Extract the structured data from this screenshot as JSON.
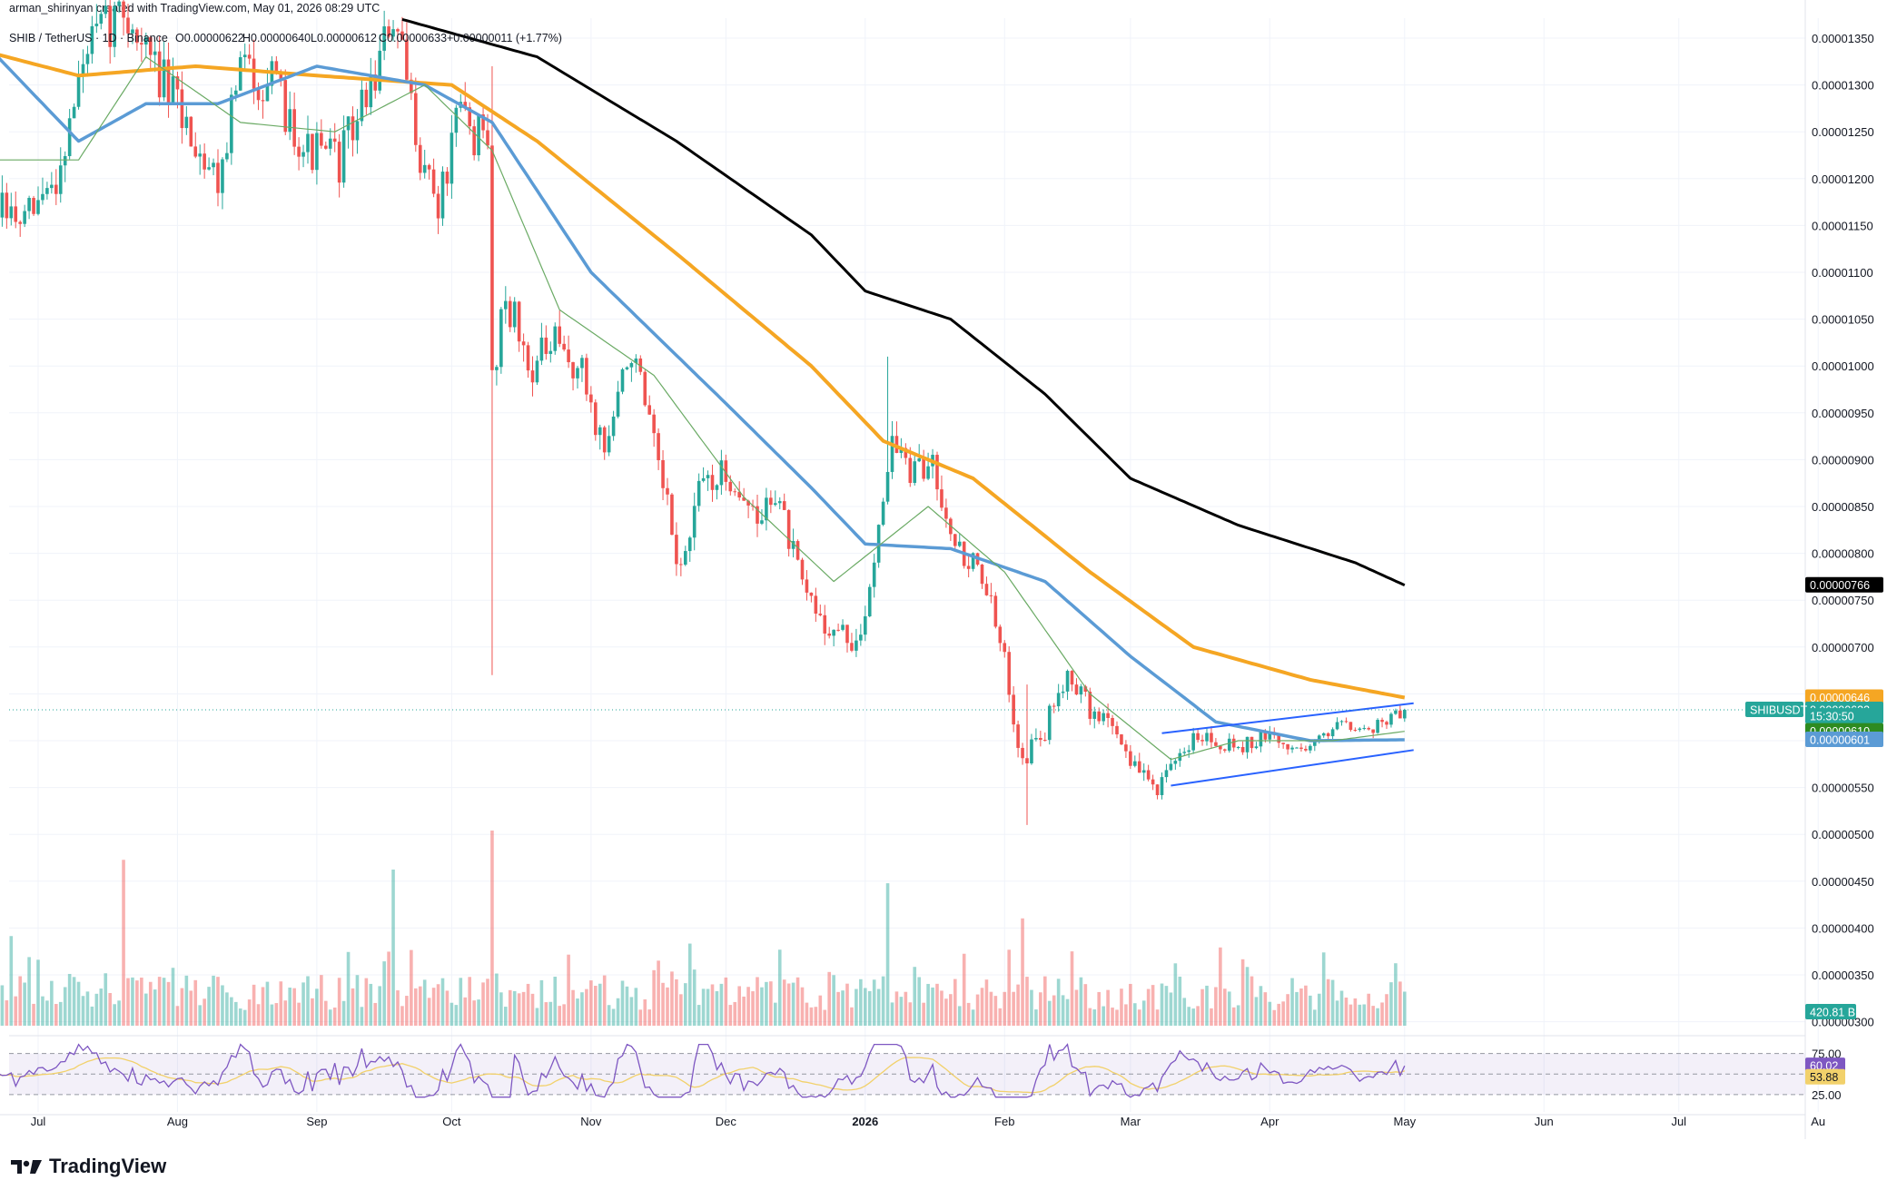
{
  "header": {
    "credit": "arman_shirinyan created with TradingView.com, May 01, 2026 08:29 UTC",
    "symbol": "SHIB / TetherUS · 1D · Binance",
    "open": "O0.00000622",
    "high": "H0.00000640",
    "low": "L0.00000612",
    "close": "C0.00000633",
    "change": "+0.00000011 (+1.77%)"
  },
  "brand": {
    "logo_text": "TradingView"
  },
  "colors": {
    "up": "#26a69a",
    "down": "#ef5350",
    "ma200": "#000000",
    "ma100": "#f5a623",
    "ma50": "#5b9bd5",
    "ma20": "#6aaa64",
    "rsi": "#7e57c2",
    "rsi_ma": "#f2d16b",
    "channel": "#2962ff"
  },
  "chart_data": {
    "type": "candlestick",
    "symbol": "SHIBUSDT",
    "timeframe": "1D",
    "x_tick_labels": [
      "Jul",
      "Aug",
      "Sep",
      "Oct",
      "Nov",
      "Dec",
      "2026",
      "Feb",
      "Mar",
      "Apr",
      "May",
      "Jun",
      "Jul",
      "Au"
    ],
    "y_tick_labels": [
      "0.00001350",
      "0.00001300",
      "0.00001250",
      "0.00001200",
      "0.00001150",
      "0.00001100",
      "0.00001050",
      "0.00001000",
      "0.00000950",
      "0.00000900",
      "0.00000850",
      "0.00000800",
      "0.00000750",
      "0.00000700",
      "0.00000650",
      "0.00000600",
      "0.00000550",
      "0.00000500",
      "0.00000450",
      "0.00000400",
      "0.00000350",
      "0.00000300"
    ],
    "ylim": [
      3e-06,
      1.37e-05
    ],
    "price_path": [
      {
        "date": "2025-06-20",
        "price": 1.17e-05
      },
      {
        "date": "2025-06-28",
        "price": 1.15e-05
      },
      {
        "date": "2025-07-05",
        "price": 1.2e-05
      },
      {
        "date": "2025-07-12",
        "price": 1.34e-05
      },
      {
        "date": "2025-07-20",
        "price": 1.38e-05
      },
      {
        "date": "2025-07-28",
        "price": 1.31e-05
      },
      {
        "date": "2025-08-04",
        "price": 1.25e-05
      },
      {
        "date": "2025-08-10",
        "price": 1.2e-05
      },
      {
        "date": "2025-08-15",
        "price": 1.32e-05
      },
      {
        "date": "2025-08-22",
        "price": 1.3e-05
      },
      {
        "date": "2025-08-30",
        "price": 1.23e-05
      },
      {
        "date": "2025-09-06",
        "price": 1.22e-05
      },
      {
        "date": "2025-09-13",
        "price": 1.3e-05
      },
      {
        "date": "2025-09-18",
        "price": 1.37e-05
      },
      {
        "date": "2025-09-24",
        "price": 1.23e-05
      },
      {
        "date": "2025-09-28",
        "price": 1.17e-05
      },
      {
        "date": "2025-10-03",
        "price": 1.27e-05
      },
      {
        "date": "2025-10-09",
        "price": 1.23e-05
      },
      {
        "date": "2025-10-10",
        "price": 9.9e-06
      },
      {
        "date": "2025-10-13",
        "price": 1.08e-05
      },
      {
        "date": "2025-10-18",
        "price": 1e-05
      },
      {
        "date": "2025-10-24",
        "price": 1.02e-05
      },
      {
        "date": "2025-10-30",
        "price": 9.9e-06
      },
      {
        "date": "2025-11-04",
        "price": 9.1e-06
      },
      {
        "date": "2025-11-10",
        "price": 1.02e-05
      },
      {
        "date": "2025-11-14",
        "price": 9.3e-06
      },
      {
        "date": "2025-11-21",
        "price": 7.8e-06
      },
      {
        "date": "2025-11-26",
        "price": 8.8e-06
      },
      {
        "date": "2025-12-03",
        "price": 8.8e-06
      },
      {
        "date": "2025-12-08",
        "price": 8.3e-06
      },
      {
        "date": "2025-12-12",
        "price": 8.7e-06
      },
      {
        "date": "2025-12-18",
        "price": 7.6e-06
      },
      {
        "date": "2025-12-24",
        "price": 7.2e-06
      },
      {
        "date": "2025-12-31",
        "price": 7e-06
      },
      {
        "date": "2026-01-05",
        "price": 8.7e-06
      },
      {
        "date": "2026-01-07",
        "price": 9.2e-06
      },
      {
        "date": "2026-01-12",
        "price": 8.8e-06
      },
      {
        "date": "2026-01-16",
        "price": 9e-06
      },
      {
        "date": "2026-01-22",
        "price": 8e-06
      },
      {
        "date": "2026-01-27",
        "price": 7.8e-06
      },
      {
        "date": "2026-02-01",
        "price": 6.8e-06
      },
      {
        "date": "2026-02-05",
        "price": 5.8e-06
      },
      {
        "date": "2026-02-10",
        "price": 6.1e-06
      },
      {
        "date": "2026-02-15",
        "price": 6.8e-06
      },
      {
        "date": "2026-02-20",
        "price": 6.3e-06
      },
      {
        "date": "2026-02-25",
        "price": 6.2e-06
      },
      {
        "date": "2026-03-02",
        "price": 5.7e-06
      },
      {
        "date": "2026-03-07",
        "price": 5.5e-06
      },
      {
        "date": "2026-03-12",
        "price": 5.8e-06
      },
      {
        "date": "2026-03-16",
        "price": 6.1e-06
      },
      {
        "date": "2026-03-20",
        "price": 6e-06
      },
      {
        "date": "2026-03-26",
        "price": 5.95e-06
      },
      {
        "date": "2026-04-01",
        "price": 6.05e-06
      },
      {
        "date": "2026-04-06",
        "price": 5.9e-06
      },
      {
        "date": "2026-04-12",
        "price": 6e-06
      },
      {
        "date": "2026-04-17",
        "price": 6.25e-06
      },
      {
        "date": "2026-04-22",
        "price": 6.1e-06
      },
      {
        "date": "2026-04-26",
        "price": 6.2e-06
      },
      {
        "date": "2026-05-01",
        "price": 6.33e-06
      }
    ],
    "volatility": [
      {
        "from": "2025-06-20",
        "value": 0.02
      },
      {
        "from": "2025-10-01",
        "value": 0.022
      },
      {
        "from": "2026-03-05",
        "value": 0.015
      },
      {
        "from": "2026-04-05",
        "value": 0.012
      }
    ],
    "spikes": [
      {
        "date": "2025-10-10",
        "low": 6.7e-06,
        "high": 1.32e-05
      },
      {
        "date": "2026-01-06",
        "low": 9e-06,
        "high": 1.01e-05
      },
      {
        "date": "2026-02-06",
        "low": 5.1e-06,
        "high": 6.6e-06
      }
    ],
    "moving_averages": [
      {
        "name": "MA200",
        "points": [
          {
            "date": "2025-09-20",
            "price": 1.37e-05
          },
          {
            "date": "2025-10-20",
            "price": 1.33e-05
          },
          {
            "date": "2025-11-20",
            "price": 1.24e-05
          },
          {
            "date": "2025-12-20",
            "price": 1.14e-05
          },
          {
            "date": "2026-01-01",
            "price": 1.08e-05
          },
          {
            "date": "2026-01-20",
            "price": 1.05e-05
          },
          {
            "date": "2026-02-10",
            "price": 9.7e-06
          },
          {
            "date": "2026-03-01",
            "price": 8.8e-06
          },
          {
            "date": "2026-03-25",
            "price": 8.3e-06
          },
          {
            "date": "2026-04-20",
            "price": 7.9e-06
          },
          {
            "date": "2026-05-01",
            "price": 7.66e-06
          }
        ]
      },
      {
        "name": "MA100",
        "points": [
          {
            "date": "2025-06-20",
            "price": 1.335e-05
          },
          {
            "date": "2025-07-10",
            "price": 1.31e-05
          },
          {
            "date": "2025-08-05",
            "price": 1.32e-05
          },
          {
            "date": "2025-09-01",
            "price": 1.31e-05
          },
          {
            "date": "2025-10-01",
            "price": 1.3e-05
          },
          {
            "date": "2025-10-20",
            "price": 1.24e-05
          },
          {
            "date": "2025-11-20",
            "price": 1.12e-05
          },
          {
            "date": "2025-12-20",
            "price": 1e-05
          },
          {
            "date": "2026-01-05",
            "price": 9.2e-06
          },
          {
            "date": "2026-01-25",
            "price": 8.8e-06
          },
          {
            "date": "2026-02-20",
            "price": 7.8e-06
          },
          {
            "date": "2026-03-15",
            "price": 7e-06
          },
          {
            "date": "2026-04-10",
            "price": 6.65e-06
          },
          {
            "date": "2026-05-01",
            "price": 6.46e-06
          }
        ]
      },
      {
        "name": "MA50",
        "points": [
          {
            "date": "2025-06-20",
            "price": 1.34e-05
          },
          {
            "date": "2025-07-10",
            "price": 1.24e-05
          },
          {
            "date": "2025-07-25",
            "price": 1.28e-05
          },
          {
            "date": "2025-08-10",
            "price": 1.28e-05
          },
          {
            "date": "2025-09-01",
            "price": 1.32e-05
          },
          {
            "date": "2025-09-25",
            "price": 1.3e-05
          },
          {
            "date": "2025-10-10",
            "price": 1.26e-05
          },
          {
            "date": "2025-11-01",
            "price": 1.1e-05
          },
          {
            "date": "2025-12-01",
            "price": 9.6e-06
          },
          {
            "date": "2025-12-20",
            "price": 8.7e-06
          },
          {
            "date": "2026-01-01",
            "price": 8.1e-06
          },
          {
            "date": "2026-01-20",
            "price": 8.05e-06
          },
          {
            "date": "2026-02-10",
            "price": 7.7e-06
          },
          {
            "date": "2026-03-01",
            "price": 6.9e-06
          },
          {
            "date": "2026-03-20",
            "price": 6.2e-06
          },
          {
            "date": "2026-04-10",
            "price": 6e-06
          },
          {
            "date": "2026-05-01",
            "price": 6.01e-06
          }
        ]
      },
      {
        "name": "MA20",
        "points": [
          {
            "date": "2025-06-20",
            "price": 1.22e-05
          },
          {
            "date": "2025-07-10",
            "price": 1.22e-05
          },
          {
            "date": "2025-07-25",
            "price": 1.33e-05
          },
          {
            "date": "2025-08-15",
            "price": 1.26e-05
          },
          {
            "date": "2025-09-05",
            "price": 1.25e-05
          },
          {
            "date": "2025-09-25",
            "price": 1.3e-05
          },
          {
            "date": "2025-10-10",
            "price": 1.23e-05
          },
          {
            "date": "2025-10-25",
            "price": 1.06e-05
          },
          {
            "date": "2025-11-15",
            "price": 9.9e-06
          },
          {
            "date": "2025-12-05",
            "price": 8.6e-06
          },
          {
            "date": "2025-12-25",
            "price": 7.7e-06
          },
          {
            "date": "2026-01-15",
            "price": 8.5e-06
          },
          {
            "date": "2026-02-01",
            "price": 7.8e-06
          },
          {
            "date": "2026-02-20",
            "price": 6.5e-06
          },
          {
            "date": "2026-03-10",
            "price": 5.8e-06
          },
          {
            "date": "2026-03-25",
            "price": 6e-06
          },
          {
            "date": "2026-04-15",
            "price": 6e-06
          },
          {
            "date": "2026-05-01",
            "price": 6.1e-06
          }
        ]
      }
    ],
    "channel": {
      "upper": [
        {
          "date": "2026-03-08",
          "price": 6.08e-06
        },
        {
          "date": "2026-05-03",
          "price": 6.4e-06
        }
      ],
      "lower": [
        {
          "date": "2026-03-10",
          "price": 5.52e-06
        },
        {
          "date": "2026-05-03",
          "price": 5.9e-06
        }
      ]
    },
    "last_price_line": 6.33e-06,
    "price_badges": [
      {
        "label": "0.00000766",
        "price": 7.66e-06,
        "color": "#000000"
      },
      {
        "label": "0.00000646",
        "price": 6.46e-06,
        "color": "#f5a623"
      },
      {
        "label": "0.00000633",
        "price": 6.33e-06,
        "color": "#26a69a"
      },
      {
        "label": "15:30:50",
        "price": 6.26e-06,
        "color": "#26a69a"
      },
      {
        "label": "0.00000610",
        "price": 6.1e-06,
        "color": "#2e8b20"
      },
      {
        "label": "0.00000601",
        "price": 6.01e-06,
        "color": "#5b9bd5"
      }
    ],
    "symbol_badge": "SHIBUSDT",
    "volume_badge": "420.81 B",
    "volume_spikes": [
      {
        "date": "2025-07-20",
        "level": 0.85
      },
      {
        "date": "2025-09-18",
        "level": 0.8
      },
      {
        "date": "2025-10-10",
        "level": 1.0
      },
      {
        "date": "2026-01-06",
        "level": 0.73
      },
      {
        "date": "2026-02-05",
        "level": 0.55
      },
      {
        "date": "2026-04-29",
        "level": 0.32
      }
    ],
    "rsi": {
      "ticks": [
        "75.00",
        "25.00"
      ],
      "value_badge": "60.02",
      "ma_badge": "53.88",
      "value": 60.02,
      "ma_value": 53.88,
      "overbought": 75,
      "oversold": 25
    }
  }
}
